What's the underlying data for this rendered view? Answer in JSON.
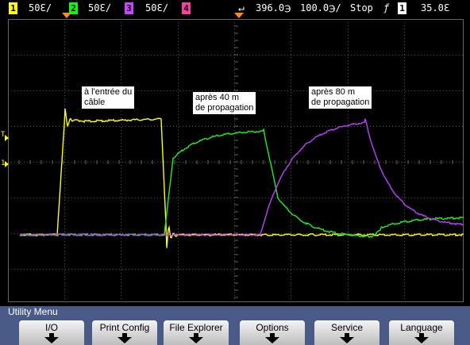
{
  "status_bar": {
    "channels": [
      {
        "number": "1",
        "scale": "50ℇ/",
        "color": "#ffff00"
      },
      {
        "number": "2",
        "scale": "50ℇ/",
        "color": "#00ff00"
      },
      {
        "number": "3",
        "scale": "50ℇ/",
        "color": "#cc44ff"
      },
      {
        "number": "4",
        "scale": "",
        "color": "#ff3ca0"
      }
    ],
    "trigger_delay": "396.0℈",
    "time_scale": "100.0℈/",
    "run_state": "Stop",
    "trigger_channel": "1",
    "trigger_level": "35.0ℇ",
    "colors": {
      "trigger_marker": "#ff8c1a",
      "channel1": "#ffff00",
      "channel2": "#00ff00",
      "channel3": "#cc44ff",
      "channel4": "#ff3ca0"
    }
  },
  "screen": {
    "annotations": [
      {
        "id": "ch1",
        "text": "à l'entrée du\ncâble"
      },
      {
        "id": "ch2",
        "text": "après 40 m\nde propagation"
      },
      {
        "id": "ch3",
        "text": "après 80 m\nde propagation"
      }
    ],
    "markers": {
      "trigger_level_marker": "T",
      "ground_marker": "1"
    }
  },
  "menu": {
    "title": "Utility Menu",
    "softkeys": [
      {
        "label": "I/O"
      },
      {
        "label": "Print Config"
      },
      {
        "label": "File Explorer"
      },
      {
        "label": "Options"
      },
      {
        "label": "Service"
      },
      {
        "label": "Language"
      }
    ],
    "colors": {
      "menu_bg": "#4a5a86",
      "softkey": "#e2e2e2"
    }
  }
}
